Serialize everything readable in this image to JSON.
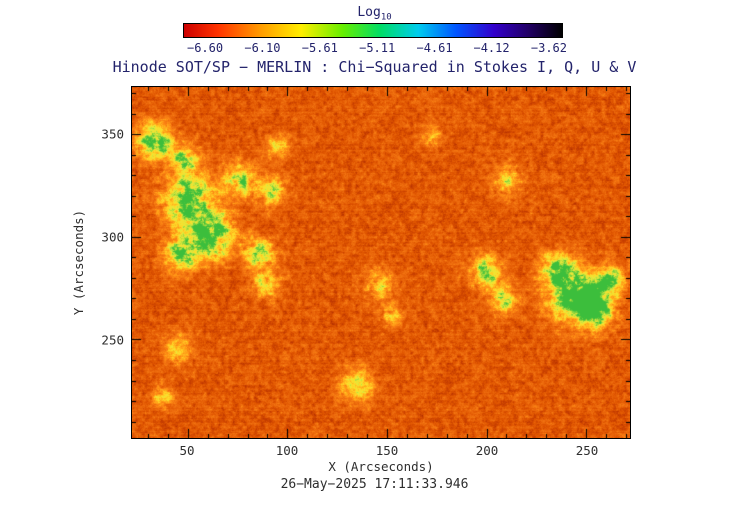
{
  "colors": {
    "background": "#ffffff",
    "title_text": "#23236b",
    "axis_text": "#2e2e2e",
    "plot_border": "#000000",
    "dominant_field": "#e06000"
  },
  "chart_data": {
    "type": "heatmap",
    "title": "Hinode SOT/SP − MERLIN : Chi−Squared in Stokes I, Q, U & V",
    "xlabel": "X (Arcseconds)",
    "ylabel": "Y (Arcseconds)",
    "caption_datetime": "26−May−2025 17:11:33.946",
    "xlim": [
      22,
      272
    ],
    "ylim": [
      202,
      373
    ],
    "xticks": [
      50,
      100,
      150,
      200,
      250
    ],
    "yticks": [
      250,
      300,
      350
    ],
    "x_tick_labels": [
      "50",
      "100",
      "150",
      "200",
      "250"
    ],
    "y_tick_labels": [
      "350",
      "300",
      "250"
    ],
    "xtick_interval": 50,
    "minor_tick_step": 10,
    "grid": false,
    "legend": false,
    "colorbar": {
      "label": "Log",
      "label_subscript": "10",
      "orientation": "horizontal",
      "position": "top",
      "range_log10": [
        -6.6,
        -3.62
      ],
      "tick_labels": [
        "−6.60",
        "−6.10",
        "−5.61",
        "−5.11",
        "−4.61",
        "−4.12",
        "−3.62"
      ],
      "stops": [
        {
          "pos": 0.0,
          "color": "#cc0000"
        },
        {
          "pos": 0.09,
          "color": "#ff3300"
        },
        {
          "pos": 0.2,
          "color": "#ff9900"
        },
        {
          "pos": 0.31,
          "color": "#ffee00"
        },
        {
          "pos": 0.42,
          "color": "#66ee00"
        },
        {
          "pos": 0.52,
          "color": "#00dd66"
        },
        {
          "pos": 0.62,
          "color": "#00ccee"
        },
        {
          "pos": 0.72,
          "color": "#0055ff"
        },
        {
          "pos": 0.82,
          "color": "#3300cc"
        },
        {
          "pos": 0.91,
          "color": "#220066"
        },
        {
          "pos": 1.0,
          "color": "#000000"
        }
      ]
    },
    "field_description": "Granular field dominated by low chi-squared (orange/red, ~ −6.3) with scattered yellow-green patches of higher chi-squared (~ −5.5) clustered left of center and near the right edge",
    "field_palette": [
      {
        "pos": 0.0,
        "color": "#8c1a00"
      },
      {
        "pos": 0.18,
        "color": "#c03800"
      },
      {
        "pos": 0.32,
        "color": "#e05500"
      },
      {
        "pos": 0.45,
        "color": "#f07010"
      },
      {
        "pos": 0.55,
        "color": "#ff8c14"
      },
      {
        "pos": 0.65,
        "color": "#ffb41e"
      },
      {
        "pos": 0.74,
        "color": "#ffdc28"
      },
      {
        "pos": 0.82,
        "color": "#e6e83c"
      },
      {
        "pos": 0.9,
        "color": "#96d73c"
      },
      {
        "pos": 1.0,
        "color": "#3cbe3c"
      }
    ],
    "hotspots": [
      {
        "x": 33,
        "y": 347,
        "r": 6,
        "s": 0.85
      },
      {
        "x": 48,
        "y": 338,
        "r": 5,
        "s": 0.6
      },
      {
        "x": 50,
        "y": 318,
        "r": 9,
        "s": 0.8
      },
      {
        "x": 63,
        "y": 300,
        "r": 8,
        "s": 0.75
      },
      {
        "x": 46,
        "y": 291,
        "r": 6,
        "s": 0.7
      },
      {
        "x": 76,
        "y": 328,
        "r": 6,
        "s": 0.6
      },
      {
        "x": 86,
        "y": 292,
        "r": 5,
        "s": 0.65
      },
      {
        "x": 92,
        "y": 322,
        "r": 5,
        "s": 0.55
      },
      {
        "x": 95,
        "y": 344,
        "r": 4,
        "s": 0.5
      },
      {
        "x": 90,
        "y": 278,
        "r": 5,
        "s": 0.55
      },
      {
        "x": 45,
        "y": 246,
        "r": 5,
        "s": 0.45
      },
      {
        "x": 38,
        "y": 222,
        "r": 4,
        "s": 0.4
      },
      {
        "x": 135,
        "y": 228,
        "r": 6,
        "s": 0.5
      },
      {
        "x": 146,
        "y": 277,
        "r": 5,
        "s": 0.45
      },
      {
        "x": 152,
        "y": 261,
        "r": 4,
        "s": 0.4
      },
      {
        "x": 172,
        "y": 349,
        "r": 4,
        "s": 0.35
      },
      {
        "x": 200,
        "y": 283,
        "r": 6,
        "s": 0.6
      },
      {
        "x": 209,
        "y": 269,
        "r": 5,
        "s": 0.5
      },
      {
        "x": 210,
        "y": 328,
        "r": 5,
        "s": 0.45
      },
      {
        "x": 236,
        "y": 285,
        "r": 6,
        "s": 0.6
      },
      {
        "x": 243,
        "y": 271,
        "r": 9,
        "s": 0.85
      },
      {
        "x": 254,
        "y": 266,
        "r": 7,
        "s": 0.8
      },
      {
        "x": 262,
        "y": 280,
        "r": 5,
        "s": 0.6
      }
    ]
  }
}
